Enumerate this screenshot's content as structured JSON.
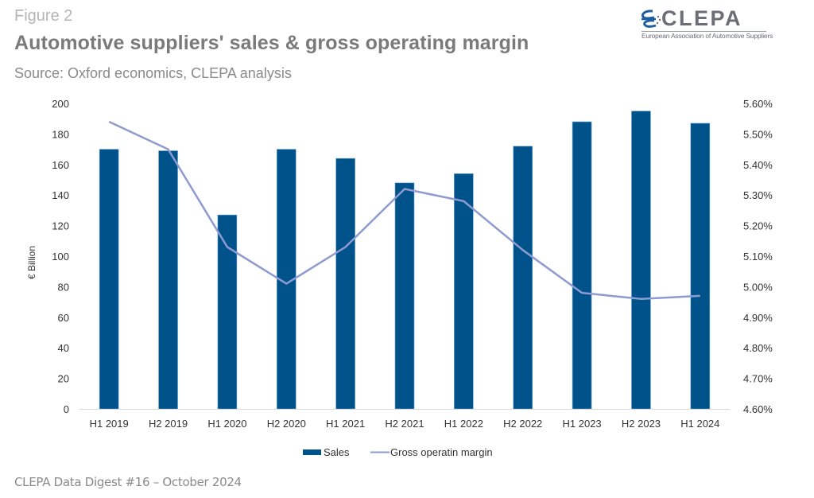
{
  "figure_label": "Figure 2",
  "title": "Automotive suppliers' sales & gross operating margin",
  "subtitle": "Source: Oxford economics, CLEPA analysis",
  "footer": "CLEPA Data Digest #16 – October 2024",
  "logo": {
    "icon": "clepa-swoosh-logo-icon",
    "word": "CLEPA",
    "tagline": "European Association of Automotive Suppliers"
  },
  "colors": {
    "bar": "#00538a",
    "line": "#8e9bd1",
    "axis": "#d9d9d9",
    "text": "#333333"
  },
  "chart_data": {
    "type": "bar",
    "combo": "bar+line",
    "title": "Automotive suppliers' sales & gross operating margin",
    "categories": [
      "H1 2019",
      "H2 2019",
      "H1 2020",
      "H2 2020",
      "H1 2021",
      "H2 2021",
      "H1 2022",
      "H2 2022",
      "H1 2023",
      "H2 2023",
      "H1 2024"
    ],
    "series": [
      {
        "name": "Sales",
        "type": "bar",
        "axis": "left",
        "values": [
          170,
          169,
          127,
          170,
          164,
          148,
          154,
          172,
          188,
          195,
          187
        ]
      },
      {
        "name": "Gross operatin margin",
        "type": "line",
        "axis": "right",
        "unit": "%",
        "values": [
          5.54,
          5.45,
          5.13,
          5.01,
          5.13,
          5.32,
          5.28,
          5.12,
          4.98,
          4.96,
          4.97
        ]
      }
    ],
    "xlabel": "",
    "ylabel": "€ Billion",
    "ylim": [
      0,
      200
    ],
    "yticks": [
      "0",
      "20",
      "40",
      "60",
      "80",
      "100",
      "120",
      "140",
      "160",
      "180",
      "200"
    ],
    "y2lim": [
      4.6,
      5.6
    ],
    "y2ticks": [
      "4.60%",
      "4.70%",
      "4.80%",
      "4.90%",
      "5.00%",
      "5.10%",
      "5.20%",
      "5.30%",
      "5.40%",
      "5.50%",
      "5.60%"
    ],
    "grid": false,
    "legend": [
      "Sales",
      "Gross operatin margin"
    ],
    "legend_position": "bottom"
  }
}
